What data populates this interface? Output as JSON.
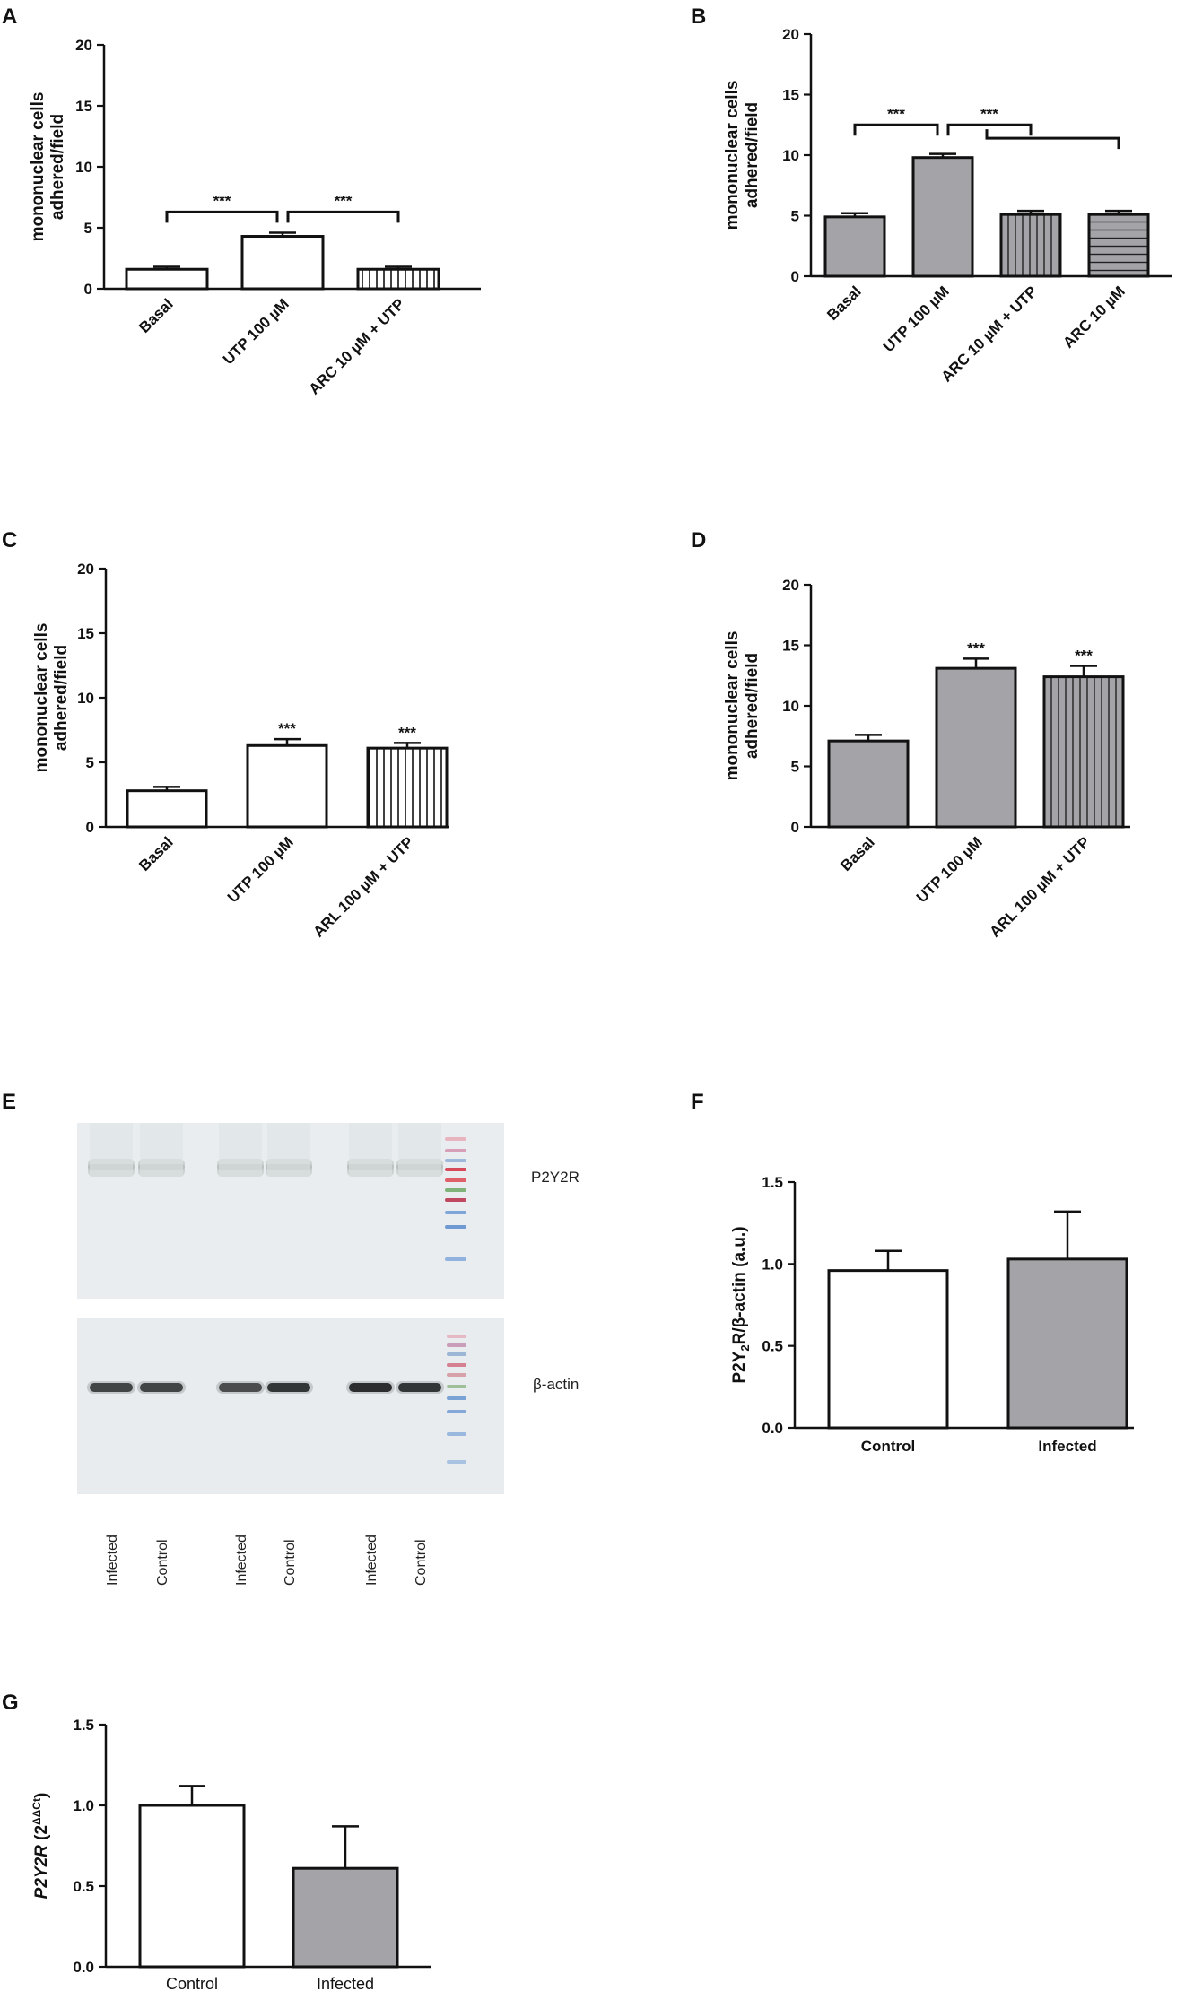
{
  "colors": {
    "white": "#ffffff",
    "grey": "#a3a3a8",
    "ink": "#111111",
    "blot_bg": "#e9edf0"
  },
  "chart_data": [
    {
      "id": "A",
      "panel_label": "A",
      "type": "bar",
      "ylabel": [
        "mononuclear cells",
        "adhered/field"
      ],
      "ylim": [
        0,
        20
      ],
      "yticks": [
        0,
        5,
        10,
        15,
        20
      ],
      "tick_format": "int",
      "categories": [
        "Basal",
        "UTP 100 µM",
        "ARC 10 µM + UTP"
      ],
      "values": [
        1.6,
        4.3,
        1.6
      ],
      "errors": [
        0.2,
        0.3,
        0.2
      ],
      "fills": [
        "white",
        "white",
        "vstripe"
      ],
      "brackets": [
        {
          "from": 0,
          "to": 1,
          "y": 6.3,
          "label": "***"
        },
        {
          "from": 1,
          "to": 2,
          "y": 6.3,
          "label": "***"
        }
      ],
      "stars": []
    },
    {
      "id": "B",
      "panel_label": "B",
      "type": "bar",
      "ylabel": [
        "mononuclear cells",
        "adhered/field"
      ],
      "ylim": [
        0,
        20
      ],
      "yticks": [
        0,
        5,
        10,
        15,
        20
      ],
      "tick_format": "int",
      "categories": [
        "Basal",
        "UTP 100 µM",
        "ARC 10 µM + UTP",
        "ARC 10 µM"
      ],
      "values": [
        4.9,
        9.8,
        5.1,
        5.1
      ],
      "errors": [
        0.3,
        0.3,
        0.3,
        0.3
      ],
      "fills": [
        "grey",
        "grey",
        "vstripe-grey",
        "hstripe-grey"
      ],
      "brackets": [
        {
          "from": 0,
          "to": 1,
          "y": 12.5,
          "label": "***"
        },
        {
          "from": 1,
          "to": 2,
          "y": 12.5,
          "label": "***"
        }
      ],
      "long_bracket": {
        "from": 1.5,
        "to": 3,
        "y": 11.4
      },
      "stars": []
    },
    {
      "id": "C",
      "panel_label": "C",
      "type": "bar",
      "ylabel": [
        "mononuclear cells",
        "adhered/field"
      ],
      "ylim": [
        0,
        20
      ],
      "yticks": [
        0,
        5,
        10,
        15,
        20
      ],
      "tick_format": "int",
      "categories": [
        "Basal",
        "UTP 100 µM",
        "ARL 100 µM + UTP"
      ],
      "values": [
        2.8,
        6.3,
        6.1
      ],
      "errors": [
        0.3,
        0.5,
        0.4
      ],
      "fills": [
        "white",
        "white",
        "vstripe"
      ],
      "brackets": [],
      "stars": [
        "",
        "***",
        "***"
      ]
    },
    {
      "id": "D",
      "panel_label": "D",
      "type": "bar",
      "ylabel": [
        "mononuclear cells",
        "adhered/field"
      ],
      "ylim": [
        0,
        20
      ],
      "yticks": [
        0,
        5,
        10,
        15,
        20
      ],
      "tick_format": "int",
      "categories": [
        "Basal",
        "UTP 100 µM",
        "ARL 100 µM + UTP"
      ],
      "values": [
        7.1,
        13.1,
        12.4
      ],
      "errors": [
        0.5,
        0.8,
        0.9
      ],
      "fills": [
        "grey",
        "grey",
        "vstripe-grey"
      ],
      "brackets": [],
      "stars": [
        "",
        "***",
        "***"
      ]
    },
    {
      "id": "F",
      "panel_label": "F",
      "type": "bar",
      "ylabel_parts": [
        "P2Y",
        "2",
        "R/β-actin (a.u.)"
      ],
      "ylim": [
        0,
        1.5
      ],
      "yticks": [
        0,
        0.5,
        1.0,
        1.5
      ],
      "tick_format": "1dp",
      "categories": [
        "Control",
        "Infected"
      ],
      "values": [
        0.96,
        1.03
      ],
      "errors": [
        0.12,
        0.29
      ],
      "fills": [
        "white",
        "grey"
      ],
      "brackets": [],
      "stars": []
    },
    {
      "id": "G",
      "panel_label": "G",
      "type": "bar",
      "ylabel_parts": [
        "P2Y2R",
        " (2",
        "^ΔΔCt",
        ")"
      ],
      "ylim": [
        0,
        1.5
      ],
      "yticks": [
        0,
        0.5,
        1.0,
        1.5
      ],
      "tick_format": "1dp",
      "categories": [
        "Control",
        "Infected"
      ],
      "values": [
        1.0,
        0.61
      ],
      "errors": [
        0.12,
        0.26
      ],
      "fills": [
        "white",
        "grey"
      ],
      "brackets": [],
      "stars": []
    }
  ],
  "blot": {
    "panel_label": "E",
    "top_label": "P2Y2R",
    "bottom_label": "β-actin",
    "lanes": [
      "Infected",
      "Control",
      "Infected",
      "Control",
      "Infected",
      "Control"
    ]
  }
}
